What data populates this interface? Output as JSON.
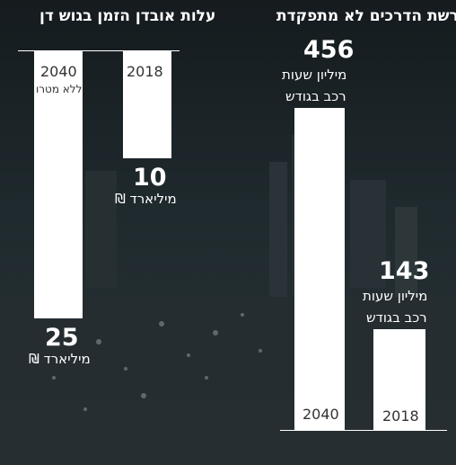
{
  "chart_data": [
    {
      "type": "bar",
      "title": "עלות אובדן הזמן בגוש דן",
      "categories": [
        "2040",
        "2018"
      ],
      "category_notes": [
        "ללא מטרו",
        ""
      ],
      "values": [
        25,
        10
      ],
      "value_labels": [
        "25",
        "10"
      ],
      "unit_label": "מיליארד ₪",
      "ylim": [
        0,
        25
      ]
    },
    {
      "type": "bar",
      "title": "רשת הדרכים לא מתפקדת",
      "categories": [
        "2040",
        "2018"
      ],
      "values": [
        456,
        143
      ],
      "value_labels": [
        "456",
        "143"
      ],
      "unit_label_lines": [
        "מיליון שעות",
        "רכב בגודש"
      ],
      "ylim": [
        0,
        456
      ]
    }
  ],
  "colors": {
    "bar": "#ffffff",
    "panel_background": "#1c2326",
    "text": "#ffffff",
    "bar_text": "#333333"
  }
}
